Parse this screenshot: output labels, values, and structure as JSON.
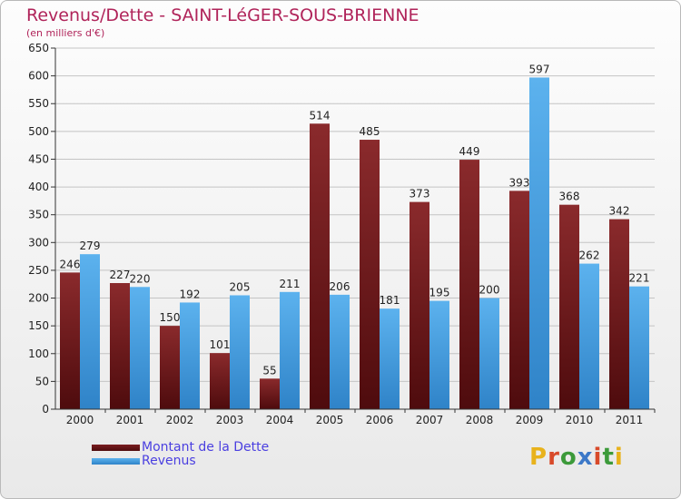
{
  "title": "Revenus/Dette - SAINT-LéGER-SOUS-BRIENNE",
  "subtitle": "(en milliers d'€)",
  "logo": "Proxiti",
  "colors": {
    "dette": "#6e1518",
    "revenus": "#4aa3e4",
    "title": "#b0245a",
    "legend_text": "#4a3fe0"
  },
  "chart_data": {
    "type": "bar",
    "categories": [
      "2000",
      "2001",
      "2002",
      "2003",
      "2004",
      "2005",
      "2006",
      "2007",
      "2008",
      "2009",
      "2010",
      "2011"
    ],
    "series": [
      {
        "name": "Montant de la Dette",
        "values": [
          246,
          227,
          150,
          101,
          55,
          514,
          485,
          373,
          449,
          393,
          368,
          342
        ]
      },
      {
        "name": "Revenus",
        "values": [
          279,
          220,
          192,
          205,
          211,
          206,
          181,
          195,
          200,
          597,
          262,
          221
        ]
      }
    ],
    "ylim": [
      0,
      650
    ],
    "yticks": [
      0,
      50,
      100,
      150,
      200,
      250,
      300,
      350,
      400,
      450,
      500,
      550,
      600,
      650
    ],
    "grid": true,
    "legend_position": "bottom-left"
  }
}
